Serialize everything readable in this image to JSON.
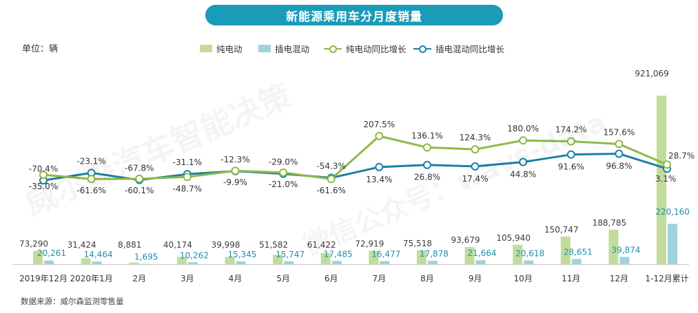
{
  "header": {
    "title": "新能源乘用车分月度销量"
  },
  "unit_label": "单位：辆",
  "source_label": "数据来源：威尔森监测零售量",
  "watermark": {
    "brand": "威尔森汽车智能决策",
    "handle": "微信公众号：wavs-data"
  },
  "colors": {
    "bev_bar": "#c3dc9b",
    "phev_bar": "#9fd3dc",
    "bev_line": "#8fb848",
    "phev_line": "#1b7fa3",
    "bev_label": "#3c3c3c",
    "phev_label": "#1e8fb0",
    "pct_label": "#333333"
  },
  "legend": [
    {
      "label": "纯电动",
      "kind": "bar",
      "color": "#c3dc9b"
    },
    {
      "label": "插电混动",
      "kind": "bar",
      "color": "#9fd3dc"
    },
    {
      "label": "纯电动同比增长",
      "kind": "line",
      "color": "#8fb848"
    },
    {
      "label": "插电混动同比增长",
      "kind": "line",
      "color": "#1b7fa3"
    }
  ],
  "chart_data": {
    "type": "bar+line",
    "title": "新能源乘用车分月度销量",
    "unit": "辆",
    "categories": [
      "2019年12月",
      "2020年1月",
      "2月",
      "3月",
      "4月",
      "5月",
      "6月",
      "7月",
      "8月",
      "9月",
      "10月",
      "11月",
      "12月",
      "1-12月累计"
    ],
    "bars": [
      {
        "name": "纯电动",
        "labels": [
          "73,290",
          "31,424",
          "8,881",
          "40,174",
          "39,998",
          "51,582",
          "61,422",
          "72,919",
          "75,518",
          "93,679",
          "105,940",
          "150,747",
          "188,785",
          "921,069"
        ],
        "values": [
          73290,
          31424,
          8881,
          40174,
          39998,
          51582,
          61422,
          72919,
          75518,
          93679,
          105940,
          150747,
          188785,
          921069
        ]
      },
      {
        "name": "插电混动",
        "labels": [
          "20,261",
          "14,464",
          "1,695",
          "10,262",
          "15,345",
          "15,747",
          "17,485",
          "16,477",
          "17,878",
          "21,664",
          "20,618",
          "28,651",
          "39,874",
          "220,160"
        ],
        "values": [
          20261,
          14464,
          1695,
          10262,
          15345,
          15747,
          17485,
          16477,
          17878,
          21664,
          20618,
          28651,
          39874,
          220160
        ]
      }
    ],
    "lines": [
      {
        "name": "纯电动同比增长",
        "labels": [
          "-35.0%",
          "-61.6%",
          "-60.1%",
          "-48.7%",
          "-9.9%",
          "-21.0%",
          "-61.6%",
          "207.5%",
          "136.1%",
          "124.3%",
          "180.0%",
          "174.2%",
          "157.6%",
          "28.7%"
        ],
        "values": [
          -35.0,
          -61.6,
          -60.1,
          -48.7,
          -9.9,
          -21.0,
          -61.6,
          207.5,
          136.1,
          124.3,
          180.0,
          174.2,
          157.6,
          28.7
        ]
      },
      {
        "name": "插电混动同比增长",
        "labels": [
          "-70.4%",
          "-23.1%",
          "-67.8%",
          "-31.1%",
          "-12.3%",
          "-29.0%",
          "-54.3%",
          "13.4%",
          "26.8%",
          "17.4%",
          "44.8%",
          "91.6%",
          "96.8%",
          "3.1%"
        ],
        "values": [
          -70.4,
          -23.1,
          -67.8,
          -31.1,
          -12.3,
          -29.0,
          -54.3,
          13.4,
          26.8,
          17.4,
          44.8,
          91.6,
          96.8,
          3.1
        ]
      }
    ],
    "y_bar_range": [
      0,
      1000000
    ],
    "y_line_range": [
      -250,
      650
    ]
  }
}
